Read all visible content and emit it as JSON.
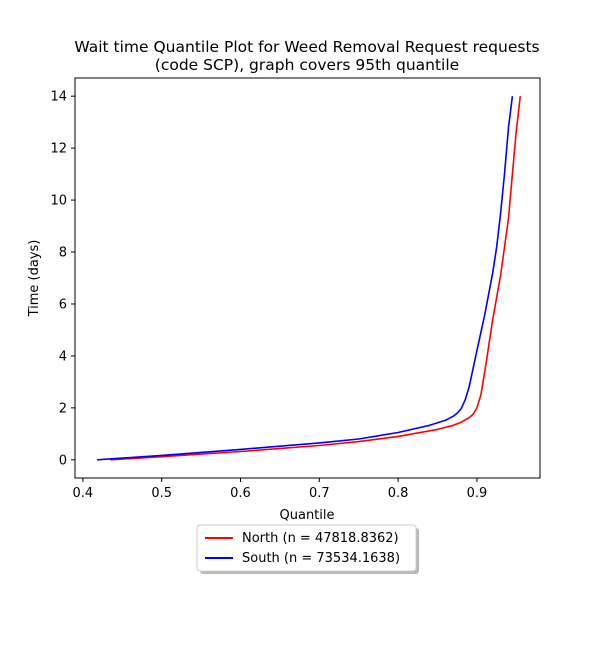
{
  "chart_data": {
    "type": "line",
    "title_lines": [
      "Wait time Quantile Plot for Weed Removal Request  requests",
      "(code SCP), graph covers 95th quantile"
    ],
    "xlabel": "Quantile",
    "ylabel": "Time (days)",
    "xlim": [
      0.39,
      0.98
    ],
    "ylim": [
      -0.7,
      14.7
    ],
    "xticks": [
      0.4,
      0.5,
      0.6,
      0.7,
      0.8,
      0.9
    ],
    "xtick_labels": [
      "0.4",
      "0.5",
      "0.6",
      "0.7",
      "0.8",
      "0.9"
    ],
    "yticks": [
      0,
      2,
      4,
      6,
      8,
      10,
      12,
      14
    ],
    "ytick_labels": [
      "0",
      "2",
      "4",
      "6",
      "8",
      "10",
      "12",
      "14"
    ],
    "grid": false,
    "legend_position": "below-center",
    "series": [
      {
        "name": "North (n = 47818.8362)",
        "color": "#ff0000",
        "x": [
          0.435,
          0.5,
          0.6,
          0.7,
          0.75,
          0.8,
          0.85,
          0.87,
          0.88,
          0.89,
          0.895,
          0.9,
          0.905,
          0.91,
          0.915,
          0.92,
          0.93,
          0.94,
          0.945,
          0.95,
          0.955
        ],
        "y": [
          0.0,
          0.12,
          0.32,
          0.55,
          0.7,
          0.9,
          1.17,
          1.33,
          1.45,
          1.62,
          1.75,
          2.0,
          2.5,
          3.4,
          4.4,
          5.4,
          7.1,
          9.3,
          11.0,
          12.7,
          14.0
        ]
      },
      {
        "name": "South (n = 73534.1638)",
        "color": "#0000ff",
        "x": [
          0.418,
          0.5,
          0.6,
          0.7,
          0.75,
          0.8,
          0.84,
          0.86,
          0.87,
          0.875,
          0.88,
          0.885,
          0.89,
          0.895,
          0.9,
          0.91,
          0.92,
          0.925,
          0.93,
          0.935,
          0.94,
          0.945
        ],
        "y": [
          0.0,
          0.17,
          0.4,
          0.65,
          0.8,
          1.05,
          1.33,
          1.52,
          1.68,
          1.8,
          1.97,
          2.3,
          2.8,
          3.5,
          4.2,
          5.6,
          7.2,
          8.2,
          9.5,
          11.0,
          12.8,
          14.0
        ]
      }
    ]
  }
}
